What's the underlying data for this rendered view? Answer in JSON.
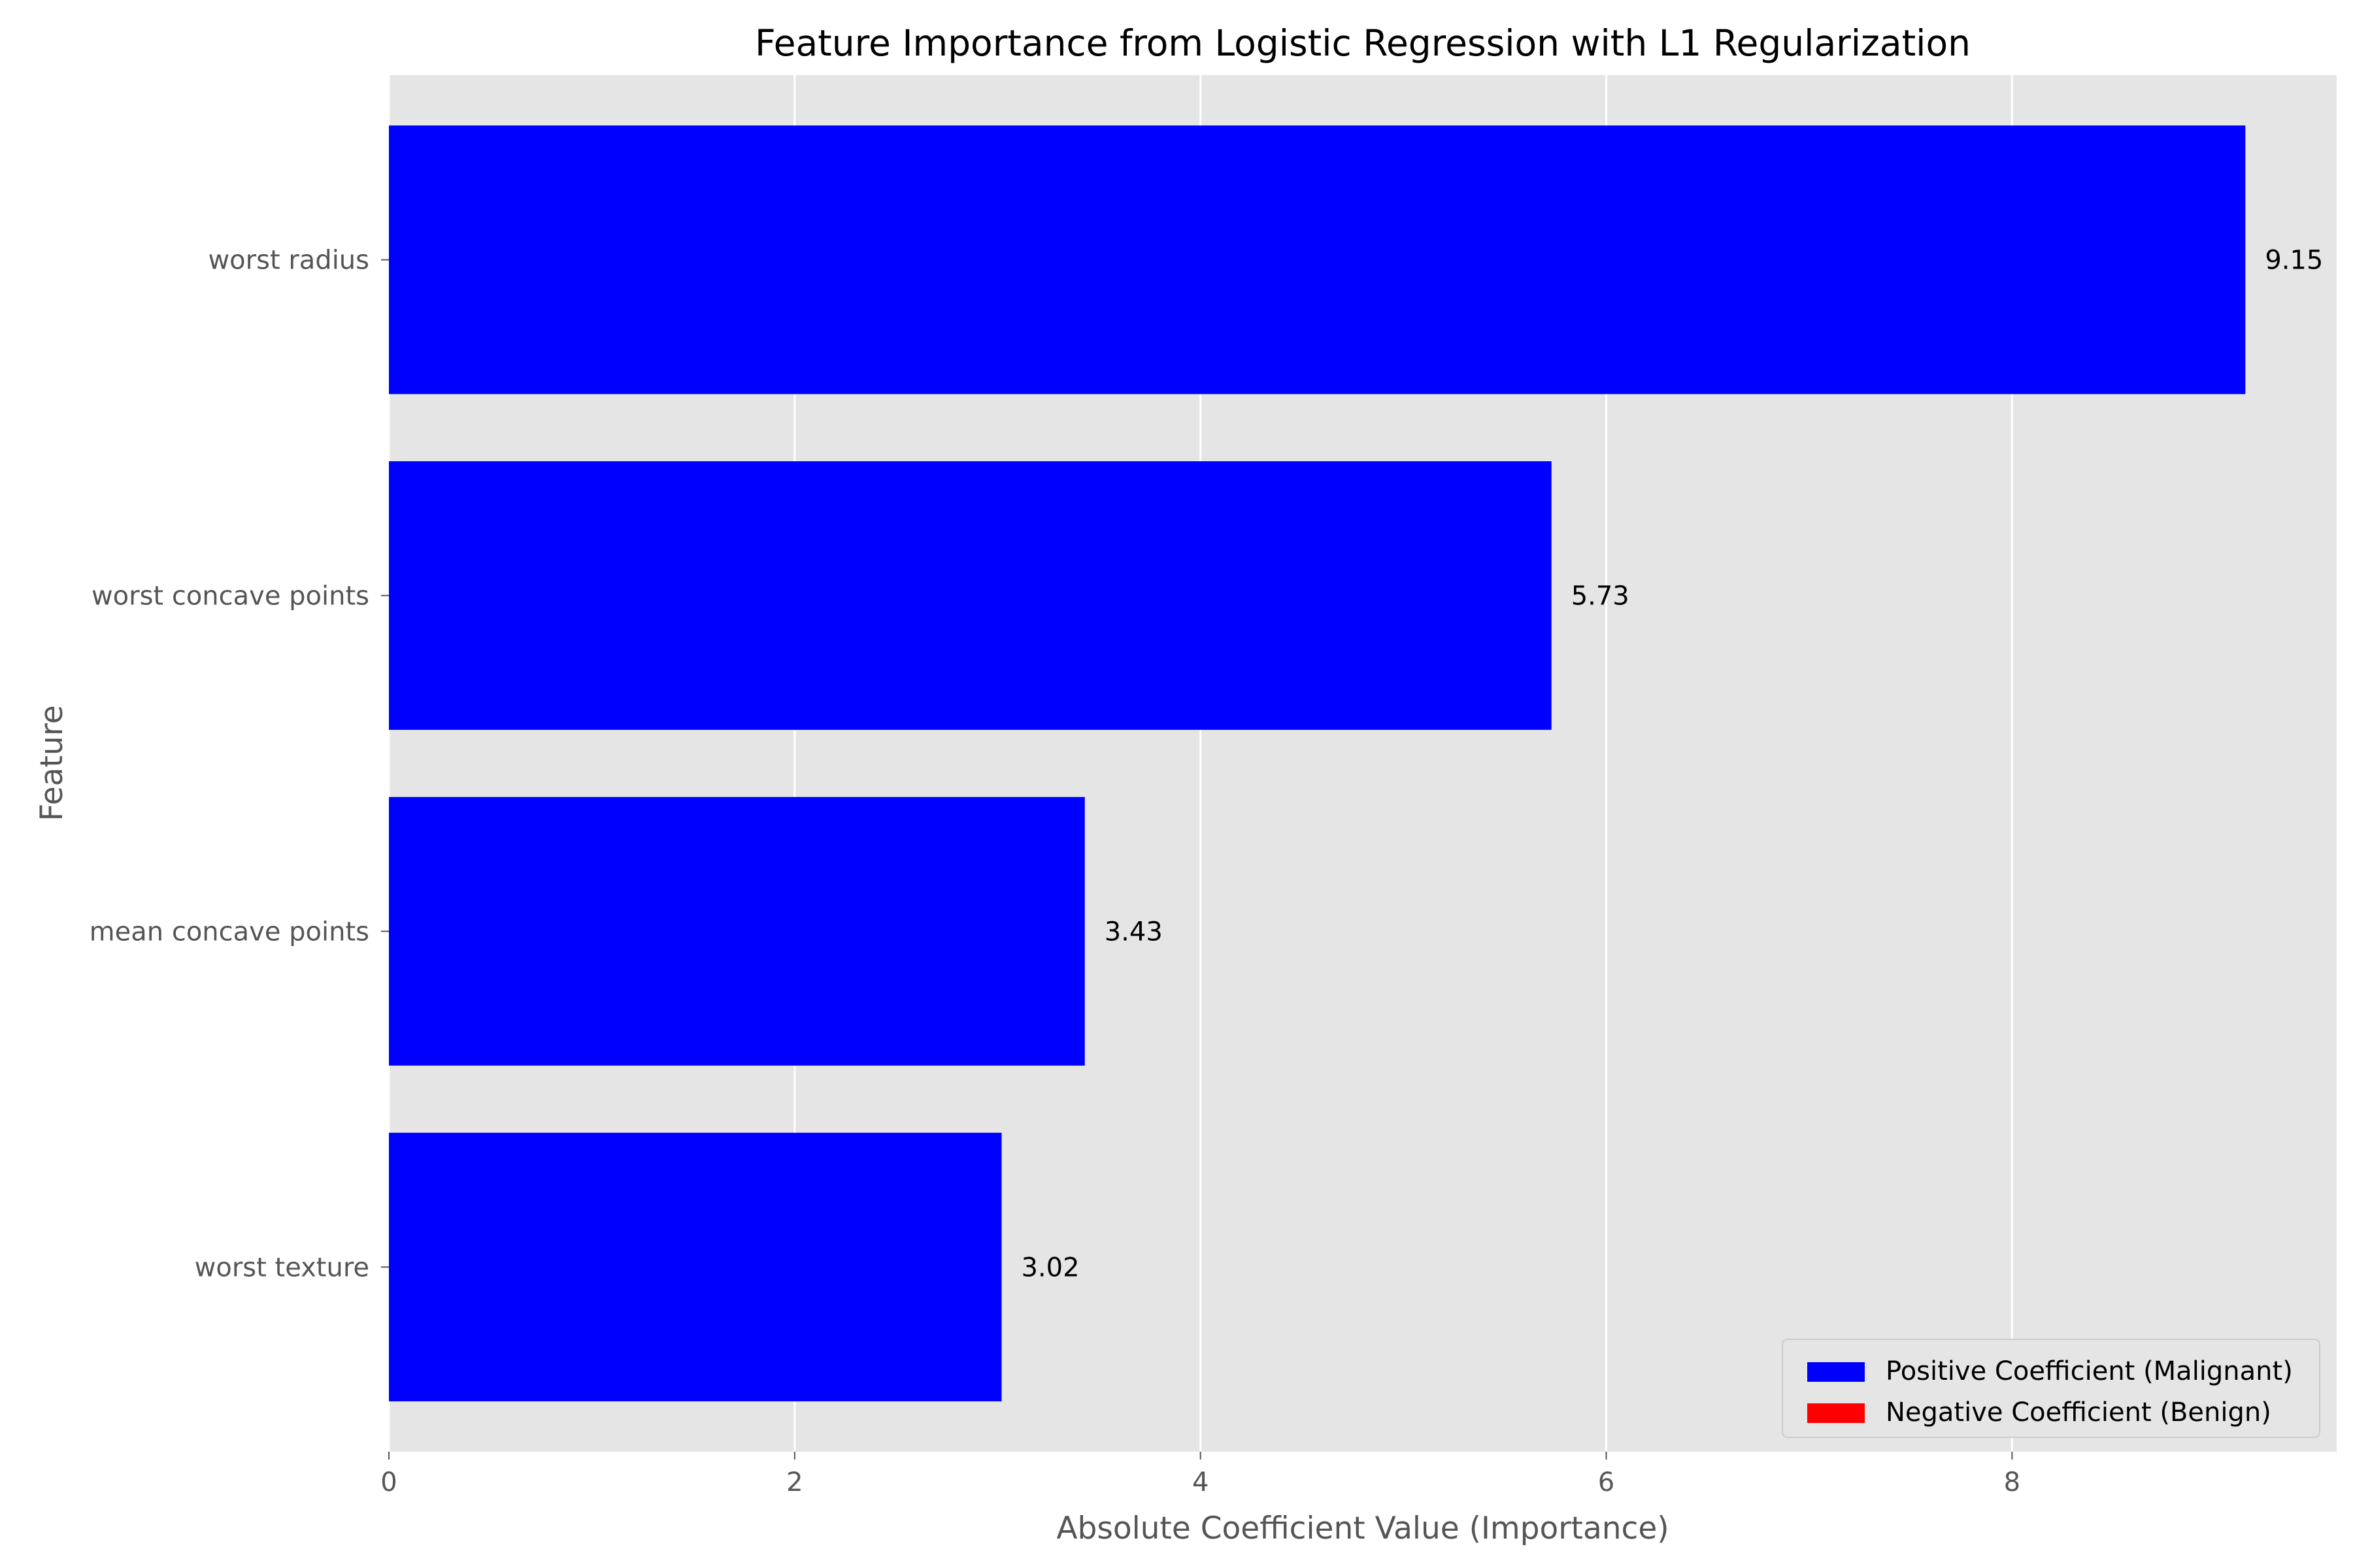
{
  "chart_data": {
    "type": "bar",
    "orientation": "horizontal",
    "title": "Feature Importance from Logistic Regression with L1 Regularization",
    "xlabel": "Absolute Coefficient Value (Importance)",
    "ylabel": "Feature",
    "xlim": [
      0,
      9.6
    ],
    "xticks": [
      0,
      2,
      4,
      6,
      8
    ],
    "grid": true,
    "legend_position": "bottom-right",
    "categories": [
      "worst radius",
      "worst concave points",
      "mean concave points",
      "worst texture"
    ],
    "values": [
      9.15,
      5.73,
      3.43,
      3.02
    ],
    "value_labels": [
      "9.15",
      "5.73",
      "3.43",
      "3.02"
    ],
    "bar_colors": [
      "#0000ff",
      "#0000ff",
      "#0000ff",
      "#0000ff"
    ],
    "legend": [
      {
        "label": "Positive Coefficient (Malignant)",
        "color": "#0000ff"
      },
      {
        "label": "Negative Coefficient (Benign)",
        "color": "#ff0000"
      }
    ],
    "background_color": "#e5e5e5",
    "grid_color": "#ffffff"
  }
}
